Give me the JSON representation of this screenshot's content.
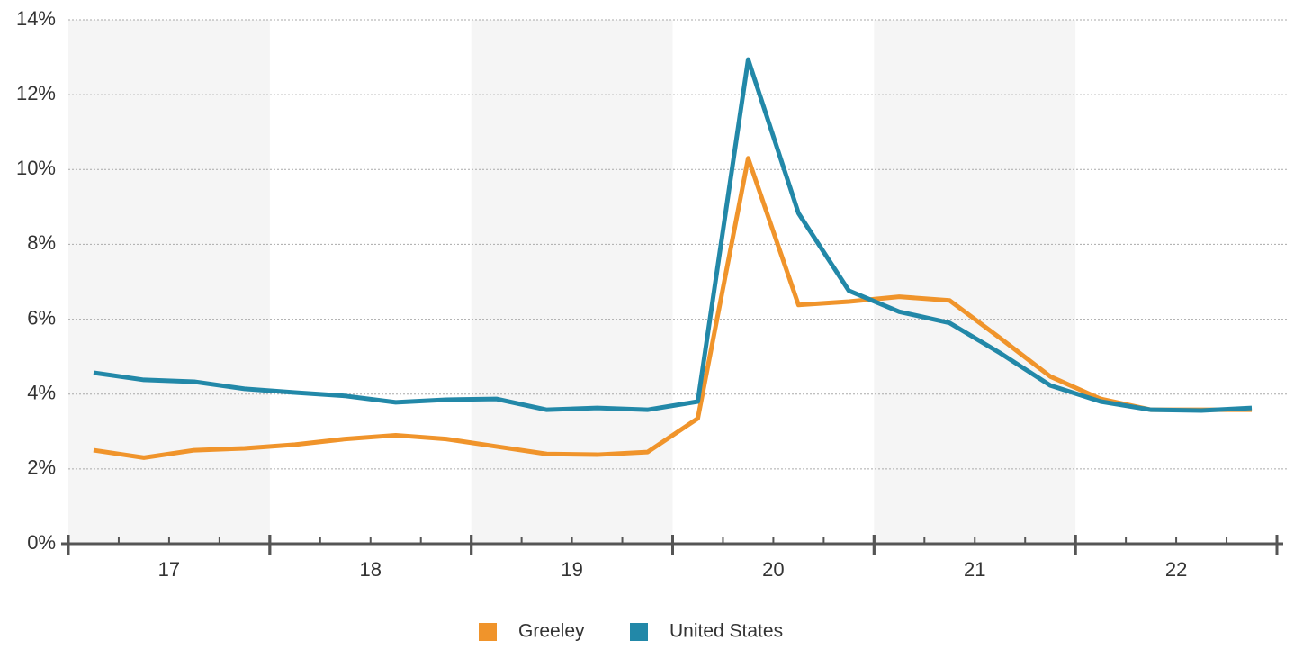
{
  "chart_data": {
    "type": "line",
    "x": [
      16.625,
      16.875,
      17.125,
      17.375,
      17.625,
      17.875,
      18.125,
      18.375,
      18.625,
      18.875,
      19.125,
      19.375,
      19.625,
      19.875,
      20.125,
      20.375,
      20.625,
      20.875,
      21.125,
      21.375,
      21.625,
      21.875,
      22.125,
      22.375
    ],
    "series": [
      {
        "name": "Greeley",
        "color": "#f0942b",
        "values": [
          2.5,
          2.3,
          2.5,
          2.55,
          2.65,
          2.8,
          2.9,
          2.8,
          2.6,
          2.4,
          2.38,
          2.45,
          3.35,
          10.3,
          6.38,
          6.47,
          6.6,
          6.5,
          5.5,
          4.47,
          3.87,
          3.58,
          3.58,
          3.58
        ]
      },
      {
        "name": "United States",
        "color": "#2288a8",
        "values": [
          4.57,
          4.38,
          4.33,
          4.14,
          4.04,
          3.95,
          3.78,
          3.85,
          3.87,
          3.58,
          3.63,
          3.58,
          3.8,
          12.94,
          8.83,
          6.76,
          6.2,
          5.9,
          5.1,
          4.23,
          3.8,
          3.58,
          3.56,
          3.63
        ]
      }
    ],
    "xlim": [
      16.5,
      22.5
    ],
    "xticks": [
      17,
      18,
      19,
      20,
      21,
      22
    ],
    "ylim": [
      0,
      14
    ],
    "yticks": [
      {
        "value": 0,
        "label": "0%"
      },
      {
        "value": 2,
        "label": "2%"
      },
      {
        "value": 4,
        "label": "4%"
      },
      {
        "value": 6,
        "label": "6%"
      },
      {
        "value": 8,
        "label": "8%"
      },
      {
        "value": 10,
        "label": "10%"
      },
      {
        "value": 12,
        "label": "12%"
      },
      {
        "value": 14,
        "label": "14%"
      }
    ],
    "grid": true,
    "legend": "bottom"
  }
}
